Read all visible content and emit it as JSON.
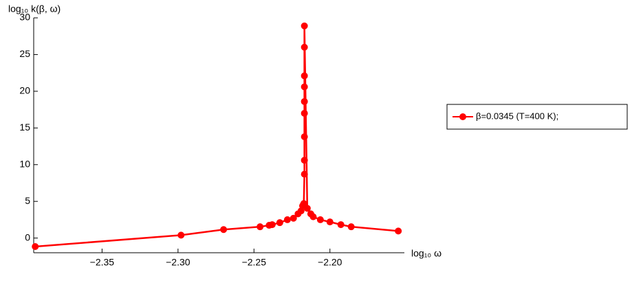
{
  "chart_data": {
    "type": "line",
    "ylabel": "log₁₀ k(β, ω)",
    "xlabel": "log₁₀ ω",
    "xlim": [
      -2.395,
      -2.151
    ],
    "ylim": [
      -2,
      30
    ],
    "xticks": [
      {
        "value": -2.35,
        "label": "−2.35"
      },
      {
        "value": -2.3,
        "label": "−2.30"
      },
      {
        "value": -2.25,
        "label": "−2.25"
      },
      {
        "value": -2.2,
        "label": "−2.20"
      }
    ],
    "yticks": [
      0,
      5,
      10,
      15,
      20,
      25,
      30
    ],
    "legend": "right",
    "series": [
      {
        "name": "β=0.0345 (T=400 K);",
        "color": "#ff0000",
        "x": [
          -2.394,
          -2.298,
          -2.27,
          -2.246,
          -2.24,
          -2.238,
          -2.233,
          -2.228,
          -2.224,
          -2.221,
          -2.219,
          -2.218,
          -2.2172,
          -2.2168,
          -2.2168,
          -2.2168,
          -2.2168,
          -2.2168,
          -2.2168,
          -2.2168,
          -2.2168,
          -2.2168,
          -2.2149,
          -2.2126,
          -2.211,
          -2.2063,
          -2.2,
          -2.1928,
          -2.186,
          -2.155
        ],
        "values": [
          -1.16,
          0.4,
          1.16,
          1.54,
          1.74,
          1.83,
          2.1,
          2.5,
          2.7,
          3.3,
          3.7,
          4.4,
          4.7,
          8.7,
          10.6,
          13.8,
          17.0,
          18.6,
          20.6,
          22.1,
          26.0,
          28.9,
          4.05,
          3.3,
          2.9,
          2.5,
          2.2,
          1.83,
          1.54,
          0.96
        ]
      }
    ]
  }
}
